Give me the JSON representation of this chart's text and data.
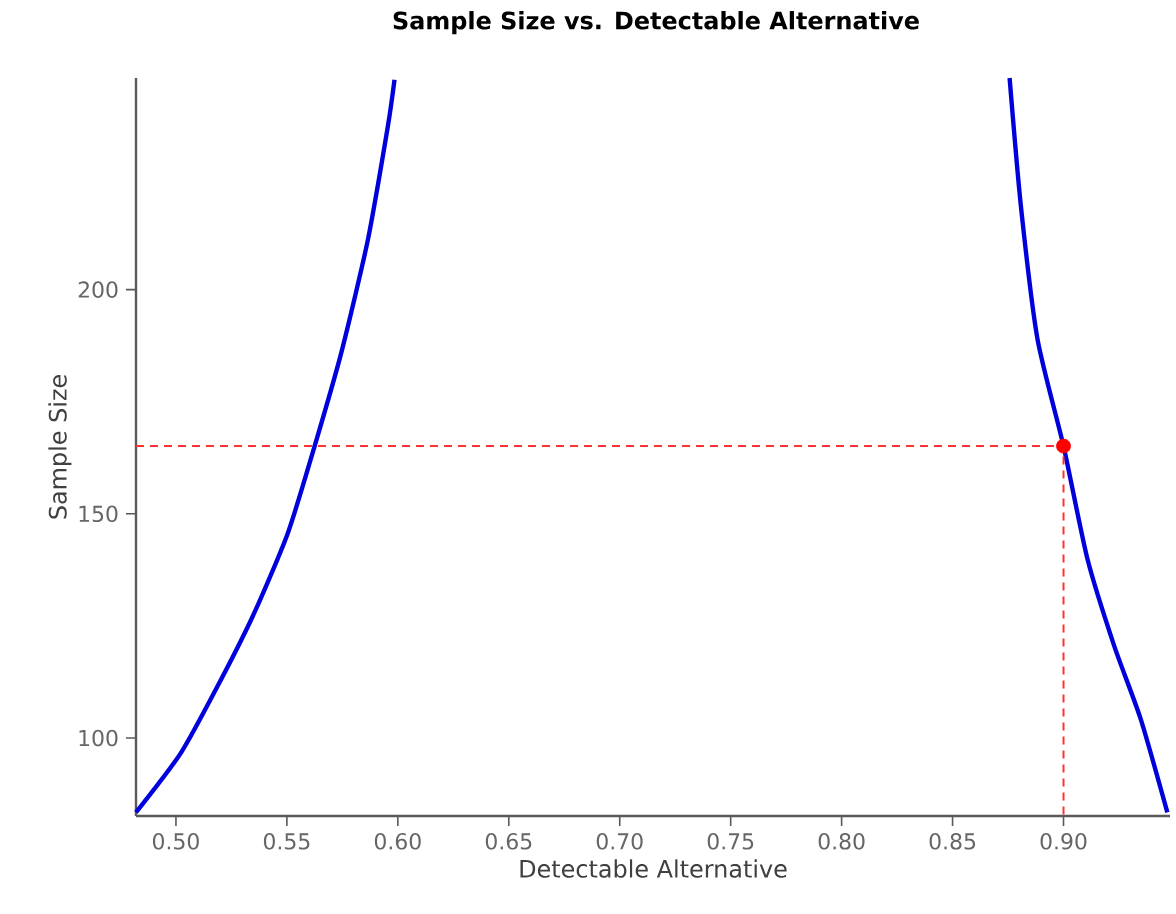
{
  "chart_data": {
    "type": "line",
    "title": "Sample Size vs. Detectable Alternative",
    "xlabel": "Detectable Alternative",
    "ylabel": "Sample Size",
    "xlim": [
      0.482,
      0.948
    ],
    "ylim": [
      82.6,
      247.2
    ],
    "xticks": [
      {
        "value": 0.5,
        "label": "0.50"
      },
      {
        "value": 0.55,
        "label": "0.55"
      },
      {
        "value": 0.6,
        "label": "0.60"
      },
      {
        "value": 0.65,
        "label": "0.65"
      },
      {
        "value": 0.7,
        "label": "0.70"
      },
      {
        "value": 0.75,
        "label": "0.75"
      },
      {
        "value": 0.8,
        "label": "0.80"
      },
      {
        "value": 0.85,
        "label": "0.85"
      },
      {
        "value": 0.9,
        "label": "0.90"
      }
    ],
    "yticks": [
      100,
      150,
      200
    ],
    "grid": false,
    "series": [
      {
        "color": "#0000dd",
        "line_style": "solid",
        "x": [
          0.482,
          0.5024,
          0.5204,
          0.5354,
          0.5505,
          0.5625,
          0.5745,
          0.5865,
          0.5955,
          0.5985
        ],
        "values": [
          83.4,
          96.8,
          113.1,
          128,
          145.8,
          165.1,
          185.9,
          211.1,
          236.4,
          246.8
        ]
      },
      {
        "color": "#0000dd",
        "line_style": "solid",
        "x": [
          0.8757,
          0.8808,
          0.8883,
          0.9,
          0.9108,
          0.9228,
          0.9348,
          0.9468
        ],
        "values": [
          247.2,
          218.6,
          188.9,
          165.1,
          139.9,
          120.6,
          104.2,
          83.4
        ]
      },
      {
        "type": "line",
        "color": "#ff3333",
        "line_style": "dashed",
        "x": [
          0.482,
          0.9,
          0.9
        ],
        "values": [
          165.1,
          165.1,
          82.6
        ]
      },
      {
        "type": "scatter",
        "color": "#ff0000",
        "marker": "circle",
        "x": [
          0.9
        ],
        "values": [
          165.1
        ]
      }
    ]
  }
}
